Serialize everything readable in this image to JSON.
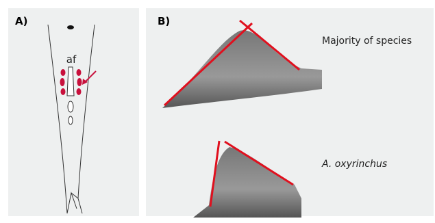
{
  "panel_a": {
    "label": "A)",
    "annotation": "af"
  },
  "panel_b": {
    "label": "B)",
    "captions": [
      "Majority of species",
      "A. oxyrinchus"
    ]
  }
}
